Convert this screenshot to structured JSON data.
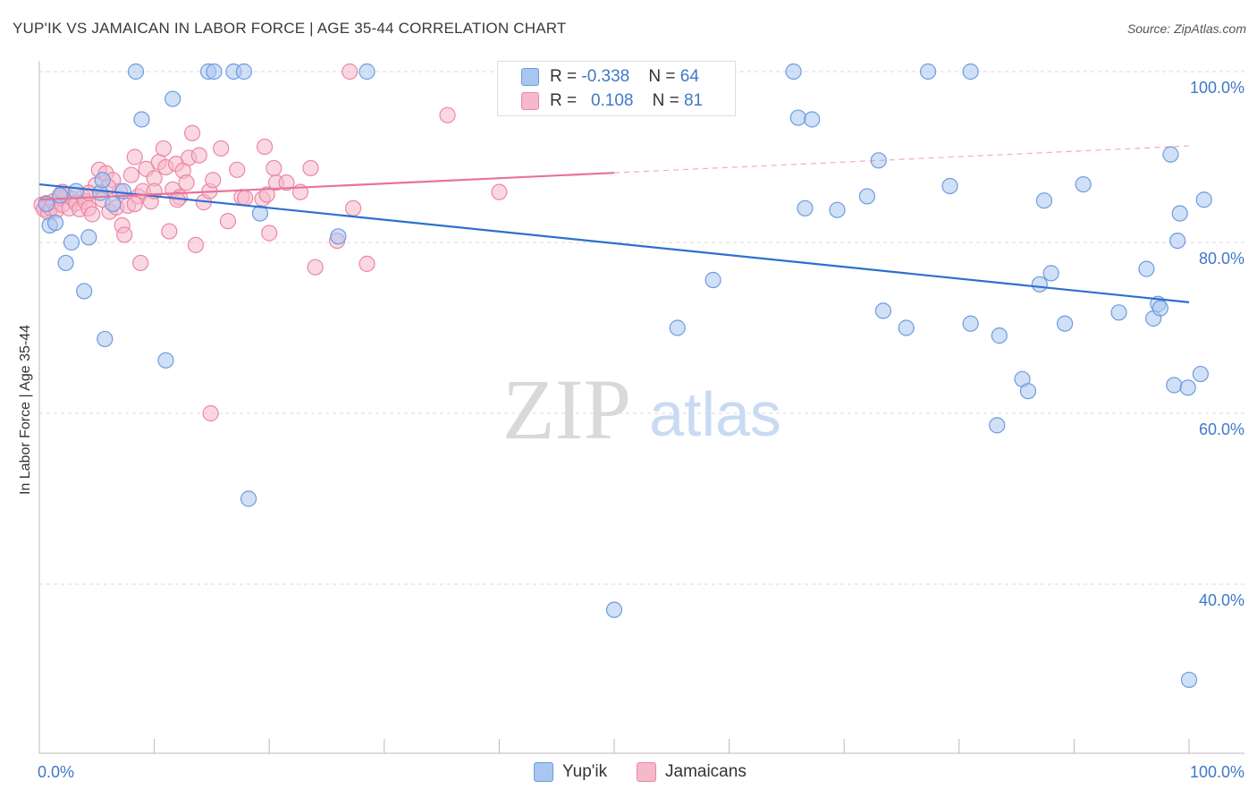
{
  "title": "YUP'IK VS JAMAICAN IN LABOR FORCE | AGE 35-44 CORRELATION CHART",
  "source": "Source: ZipAtlas.com",
  "watermark": {
    "zip": "ZIP",
    "atlas": "atlas"
  },
  "colors": {
    "yupik_fill": "#a9c6f0",
    "yupik_stroke": "#6d9be0",
    "yupik_line": "#2d6fd0",
    "jamaican_fill": "#f6b8cb",
    "jamaican_stroke": "#ec86a6",
    "jamaican_line": "#e8739a",
    "tick_text": "#3f78c9",
    "grid": "#d8d8d8"
  },
  "legend": {
    "rows": [
      {
        "r_label": "R = ",
        "r_value": "-0.338",
        "n_label": "N = ",
        "n_value": "64"
      },
      {
        "r_label": "R = ",
        "r_value": "0.108",
        "n_label": "N = ",
        "n_value": "81"
      }
    ]
  },
  "chart_data": {
    "type": "scatter",
    "title": "YUP'IK VS JAMAICAN IN LABOR FORCE | AGE 35-44 CORRELATION CHART",
    "xlabel": "",
    "ylabel": "In Labor Force | Age 35-44",
    "xlim": [
      0,
      100
    ],
    "ylim": [
      20,
      102
    ],
    "x_tick_labels": [
      "0.0%",
      "100.0%"
    ],
    "y_ticks": [
      40,
      60,
      80,
      100
    ],
    "y_tick_labels": [
      "40.0%",
      "60.0%",
      "80.0%",
      "100.0%"
    ],
    "series": [
      {
        "name": "Yup'ik",
        "R": -0.338,
        "N": 64,
        "trend": {
          "x": [
            0,
            100
          ],
          "y": [
            86.8,
            73.0
          ],
          "dashed_from": null
        },
        "points": [
          [
            0.6,
            84.5
          ],
          [
            0.9,
            82.0
          ],
          [
            1.4,
            82.3
          ],
          [
            1.8,
            85.5
          ],
          [
            2.3,
            77.6
          ],
          [
            2.8,
            80.0
          ],
          [
            3.2,
            86.0
          ],
          [
            3.9,
            74.3
          ],
          [
            4.3,
            80.6
          ],
          [
            5.3,
            85.8
          ],
          [
            5.5,
            87.3
          ],
          [
            5.7,
            68.7
          ],
          [
            6.4,
            84.5
          ],
          [
            7.3,
            86.0
          ],
          [
            8.4,
            100.0
          ],
          [
            8.9,
            94.4
          ],
          [
            11.0,
            66.2
          ],
          [
            11.6,
            96.8
          ],
          [
            14.7,
            100.0
          ],
          [
            15.2,
            100.0
          ],
          [
            16.9,
            100.0
          ],
          [
            17.8,
            100.0
          ],
          [
            18.2,
            50.0
          ],
          [
            19.2,
            83.4
          ],
          [
            26.0,
            80.7
          ],
          [
            28.5,
            100.0
          ],
          [
            50.0,
            37.0
          ],
          [
            55.5,
            70.0
          ],
          [
            58.6,
            75.6
          ],
          [
            65.6,
            100.0
          ],
          [
            66.0,
            94.6
          ],
          [
            66.6,
            84.0
          ],
          [
            67.2,
            94.4
          ],
          [
            69.4,
            83.8
          ],
          [
            72.0,
            85.4
          ],
          [
            73.4,
            72.0
          ],
          [
            77.3,
            100.0
          ],
          [
            75.4,
            70.0
          ],
          [
            81.0,
            100.0
          ],
          [
            73.0,
            89.6
          ],
          [
            79.2,
            86.6
          ],
          [
            83.3,
            58.6
          ],
          [
            81.0,
            70.5
          ],
          [
            83.5,
            69.1
          ],
          [
            85.5,
            64.0
          ],
          [
            86.0,
            62.6
          ],
          [
            87.0,
            75.1
          ],
          [
            87.4,
            84.9
          ],
          [
            88.0,
            76.4
          ],
          [
            89.2,
            70.5
          ],
          [
            90.8,
            86.8
          ],
          [
            93.9,
            71.8
          ],
          [
            96.3,
            76.9
          ],
          [
            96.9,
            71.1
          ],
          [
            97.3,
            72.8
          ],
          [
            97.5,
            72.3
          ],
          [
            98.4,
            90.3
          ],
          [
            99.0,
            80.2
          ],
          [
            99.2,
            83.4
          ],
          [
            98.7,
            63.3
          ],
          [
            99.9,
            63.0
          ],
          [
            100.0,
            28.8
          ],
          [
            101.0,
            64.6
          ],
          [
            101.3,
            85.0
          ]
        ]
      },
      {
        "name": "Jamaicans",
        "R": 0.108,
        "N": 81,
        "trend": {
          "x": [
            0,
            100
          ],
          "y": [
            85.0,
            91.3
          ],
          "dashed_from": 50
        },
        "points": [
          [
            0.2,
            84.4
          ],
          [
            0.4,
            83.9
          ],
          [
            0.6,
            84.6
          ],
          [
            0.8,
            83.5
          ],
          [
            1.0,
            84.0
          ],
          [
            1.2,
            84.8
          ],
          [
            1.5,
            83.8
          ],
          [
            1.8,
            85.2
          ],
          [
            2.0,
            84.4
          ],
          [
            2.3,
            85.5
          ],
          [
            2.6,
            84.0
          ],
          [
            2.9,
            85.1
          ],
          [
            3.2,
            84.6
          ],
          [
            3.5,
            83.9
          ],
          [
            3.8,
            85.3
          ],
          [
            4.0,
            84.8
          ],
          [
            4.3,
            84.0
          ],
          [
            4.6,
            83.3
          ],
          [
            4.9,
            86.7
          ],
          [
            5.2,
            88.5
          ],
          [
            5.5,
            85.0
          ],
          [
            5.8,
            88.1
          ],
          [
            6.1,
            83.6
          ],
          [
            6.4,
            87.3
          ],
          [
            6.7,
            84.1
          ],
          [
            7.0,
            86.0
          ],
          [
            7.2,
            82.0
          ],
          [
            7.4,
            80.9
          ],
          [
            7.7,
            84.3
          ],
          [
            8.0,
            87.9
          ],
          [
            8.3,
            90.0
          ],
          [
            8.6,
            85.4
          ],
          [
            8.8,
            77.6
          ],
          [
            9.0,
            86.0
          ],
          [
            9.3,
            88.6
          ],
          [
            9.7,
            84.8
          ],
          [
            10.0,
            87.5
          ],
          [
            10.4,
            89.4
          ],
          [
            10.8,
            91.0
          ],
          [
            11.0,
            88.8
          ],
          [
            11.3,
            81.3
          ],
          [
            11.6,
            86.2
          ],
          [
            11.9,
            89.2
          ],
          [
            12.2,
            85.3
          ],
          [
            12.5,
            88.4
          ],
          [
            12.8,
            87.0
          ],
          [
            13.0,
            89.9
          ],
          [
            13.3,
            92.8
          ],
          [
            13.6,
            79.7
          ],
          [
            13.9,
            90.2
          ],
          [
            14.3,
            84.7
          ],
          [
            14.8,
            86.0
          ],
          [
            15.1,
            87.3
          ],
          [
            14.9,
            60.0
          ],
          [
            15.8,
            91.0
          ],
          [
            16.4,
            82.5
          ],
          [
            17.2,
            88.5
          ],
          [
            17.6,
            85.3
          ],
          [
            17.9,
            85.2
          ],
          [
            19.4,
            85.1
          ],
          [
            19.6,
            91.2
          ],
          [
            19.8,
            85.6
          ],
          [
            20.0,
            81.1
          ],
          [
            20.4,
            88.7
          ],
          [
            20.6,
            87.0
          ],
          [
            21.5,
            87.0
          ],
          [
            22.7,
            85.9
          ],
          [
            23.6,
            88.7
          ],
          [
            24.0,
            77.1
          ],
          [
            25.9,
            80.2
          ],
          [
            27.0,
            100.0
          ],
          [
            27.3,
            84.0
          ],
          [
            28.5,
            77.5
          ],
          [
            35.5,
            94.9
          ],
          [
            40.0,
            85.9
          ],
          [
            8.3,
            84.5
          ],
          [
            10.0,
            86.0
          ],
          [
            6.0,
            86.5
          ],
          [
            4.3,
            85.8
          ],
          [
            2.0,
            85.9
          ],
          [
            12.0,
            85.0
          ]
        ]
      }
    ]
  },
  "bottom_legend": {
    "yupik": "Yup'ik",
    "jamaicans": "Jamaicans"
  }
}
